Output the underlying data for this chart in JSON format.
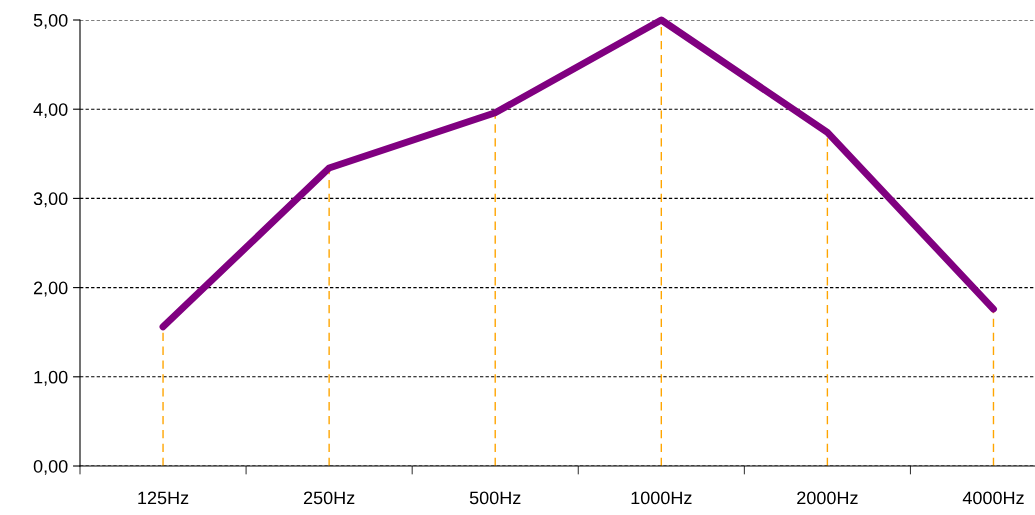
{
  "chart_data": {
    "type": "line",
    "categories": [
      "125Hz",
      "250Hz",
      "500Hz",
      "1000Hz",
      "2000Hz",
      "4000Hz"
    ],
    "series": [
      {
        "color": "#800080",
        "values": [
          1.56,
          3.34,
          3.96,
          5.0,
          3.74,
          1.76
        ]
      }
    ],
    "ylim": [
      0,
      5
    ],
    "yticks": [
      {
        "value": 0,
        "label": "0,00"
      },
      {
        "value": 1,
        "label": "1,00"
      },
      {
        "value": 2,
        "label": "2,00"
      },
      {
        "value": 3,
        "label": "3,00"
      },
      {
        "value": 4,
        "label": "4,00"
      },
      {
        "value": 5,
        "label": "5,00"
      }
    ],
    "grid": "y",
    "marker": "none",
    "line_style": "solid",
    "ref_lines": [
      {
        "axis": "x",
        "value": "125Hz",
        "color": "#ffa500",
        "line_style": "dashed"
      },
      {
        "axis": "x",
        "value": "250Hz",
        "color": "#ffa500",
        "line_style": "dashed"
      },
      {
        "axis": "x",
        "value": "500Hz",
        "color": "#ffa500",
        "line_style": "dashed"
      },
      {
        "axis": "x",
        "value": "1000Hz",
        "color": "#ffa500",
        "line_style": "dashed"
      },
      {
        "axis": "x",
        "value": "2000Hz",
        "color": "#ffa500",
        "line_style": "dashed"
      },
      {
        "axis": "x",
        "value": "4000Hz",
        "color": "#ffa500",
        "line_style": "dashed"
      }
    ]
  }
}
